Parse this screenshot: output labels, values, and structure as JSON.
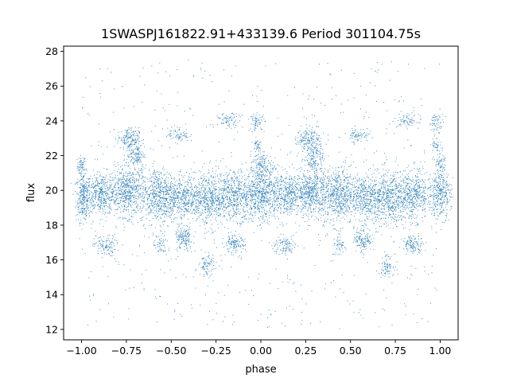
{
  "chart_data": {
    "type": "scatter",
    "title": "1SWASPJ161822.91+433139.6 Period 301104.75s",
    "xlabel": "phase",
    "ylabel": "flux",
    "xlim": [
      -1.1,
      1.1
    ],
    "ylim": [
      11.4,
      28.3
    ],
    "x_ticks": [
      -1.0,
      -0.75,
      -0.5,
      -0.25,
      0.0,
      0.25,
      0.5,
      0.75,
      1.0
    ],
    "x_tick_labels": [
      "−1.00",
      "−0.75",
      "−0.50",
      "−0.25",
      "0.00",
      "0.25",
      "0.50",
      "0.75",
      "1.00"
    ],
    "y_ticks": [
      12,
      14,
      16,
      18,
      20,
      22,
      24,
      26,
      28
    ],
    "y_tick_labels": [
      "12",
      "14",
      "16",
      "18",
      "20",
      "22",
      "24",
      "26",
      "28"
    ],
    "grid": false,
    "legend": "none",
    "marker_color": "#1f77b4",
    "marker_size": "tiny",
    "series": [
      {
        "clusters": [
          {
            "x": -1.0,
            "x_spread": 0.012,
            "y": 21.4,
            "y_spread": 0.3,
            "n": 60
          },
          {
            "x": -0.99,
            "x_spread": 0.02,
            "y": 19.6,
            "y_spread": 0.7,
            "n": 280
          },
          {
            "x": -0.89,
            "x_spread": 0.05,
            "y": 19.8,
            "y_spread": 0.6,
            "n": 420
          },
          {
            "x": -0.87,
            "x_spread": 0.03,
            "y": 16.8,
            "y_spread": 0.3,
            "n": 110
          },
          {
            "x": -0.74,
            "x_spread": 0.05,
            "y": 19.9,
            "y_spread": 0.7,
            "n": 560
          },
          {
            "x": -0.74,
            "x_spread": 0.03,
            "y": 23.0,
            "y_spread": 0.3,
            "n": 140
          },
          {
            "x": -0.7,
            "x_spread": 0.025,
            "y": 22.1,
            "y_spread": 0.5,
            "n": 160
          },
          {
            "x": -0.57,
            "x_spread": 0.05,
            "y": 19.7,
            "y_spread": 0.8,
            "n": 560
          },
          {
            "x": -0.56,
            "x_spread": 0.02,
            "y": 16.8,
            "y_spread": 0.3,
            "n": 50
          },
          {
            "x": -0.46,
            "x_spread": 0.03,
            "y": 23.2,
            "y_spread": 0.2,
            "n": 70
          },
          {
            "x": -0.43,
            "x_spread": 0.05,
            "y": 19.6,
            "y_spread": 0.6,
            "n": 420
          },
          {
            "x": -0.43,
            "x_spread": 0.025,
            "y": 17.2,
            "y_spread": 0.35,
            "n": 140
          },
          {
            "x": -0.29,
            "x_spread": 0.05,
            "y": 19.5,
            "y_spread": 0.8,
            "n": 520
          },
          {
            "x": -0.3,
            "x_spread": 0.02,
            "y": 15.7,
            "y_spread": 0.3,
            "n": 80
          },
          {
            "x": -0.18,
            "x_spread": 0.03,
            "y": 24.0,
            "y_spread": 0.2,
            "n": 70
          },
          {
            "x": -0.15,
            "x_spread": 0.05,
            "y": 19.7,
            "y_spread": 0.7,
            "n": 480
          },
          {
            "x": -0.15,
            "x_spread": 0.03,
            "y": 16.9,
            "y_spread": 0.25,
            "n": 120
          },
          {
            "x": -0.02,
            "x_spread": 0.02,
            "y": 23.9,
            "y_spread": 0.25,
            "n": 60
          },
          {
            "x": -0.02,
            "x_spread": 0.015,
            "y": 22.6,
            "y_spread": 0.2,
            "n": 40
          },
          {
            "x": 0.0,
            "x_spread": 0.05,
            "y": 19.8,
            "y_spread": 0.8,
            "n": 620
          },
          {
            "x": 0.01,
            "x_spread": 0.03,
            "y": 21.5,
            "y_spread": 0.3,
            "n": 120
          },
          {
            "x": 0.14,
            "x_spread": 0.05,
            "y": 19.8,
            "y_spread": 0.6,
            "n": 420
          },
          {
            "x": 0.13,
            "x_spread": 0.03,
            "y": 16.8,
            "y_spread": 0.3,
            "n": 100
          },
          {
            "x": 0.28,
            "x_spread": 0.05,
            "y": 19.9,
            "y_spread": 0.7,
            "n": 560
          },
          {
            "x": 0.26,
            "x_spread": 0.03,
            "y": 23.0,
            "y_spread": 0.3,
            "n": 140
          },
          {
            "x": 0.3,
            "x_spread": 0.025,
            "y": 22.1,
            "y_spread": 0.5,
            "n": 160
          },
          {
            "x": 0.43,
            "x_spread": 0.05,
            "y": 19.7,
            "y_spread": 0.8,
            "n": 560
          },
          {
            "x": 0.44,
            "x_spread": 0.02,
            "y": 16.8,
            "y_spread": 0.3,
            "n": 50
          },
          {
            "x": 0.54,
            "x_spread": 0.03,
            "y": 23.2,
            "y_spread": 0.2,
            "n": 70
          },
          {
            "x": 0.57,
            "x_spread": 0.05,
            "y": 19.6,
            "y_spread": 0.6,
            "n": 420
          },
          {
            "x": 0.57,
            "x_spread": 0.025,
            "y": 17.2,
            "y_spread": 0.35,
            "n": 140
          },
          {
            "x": 0.71,
            "x_spread": 0.05,
            "y": 19.5,
            "y_spread": 0.8,
            "n": 520
          },
          {
            "x": 0.7,
            "x_spread": 0.02,
            "y": 15.7,
            "y_spread": 0.3,
            "n": 80
          },
          {
            "x": 0.82,
            "x_spread": 0.03,
            "y": 24.0,
            "y_spread": 0.2,
            "n": 70
          },
          {
            "x": 0.85,
            "x_spread": 0.05,
            "y": 19.7,
            "y_spread": 0.7,
            "n": 480
          },
          {
            "x": 0.85,
            "x_spread": 0.03,
            "y": 16.9,
            "y_spread": 0.25,
            "n": 120
          },
          {
            "x": 0.98,
            "x_spread": 0.02,
            "y": 23.9,
            "y_spread": 0.25,
            "n": 60
          },
          {
            "x": 0.98,
            "x_spread": 0.015,
            "y": 22.6,
            "y_spread": 0.2,
            "n": 40
          },
          {
            "x": 1.0,
            "x_spread": 0.03,
            "y": 19.8,
            "y_spread": 0.7,
            "n": 320
          },
          {
            "x": 1.0,
            "x_spread": 0.015,
            "y": 21.5,
            "y_spread": 0.3,
            "n": 60
          }
        ],
        "scatter_background": {
          "x_range": [
            -1.0,
            1.0
          ],
          "y_range": [
            12.0,
            27.5
          ],
          "n": 700
        }
      }
    ]
  }
}
